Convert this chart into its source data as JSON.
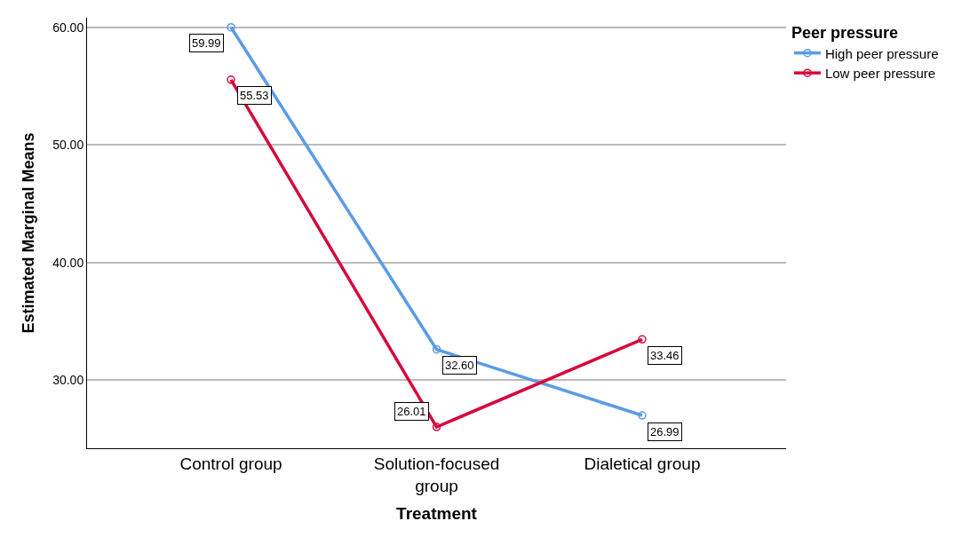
{
  "chart_data": {
    "type": "line",
    "xlabel": "Treatment",
    "ylabel": "Estimated Marginal Means",
    "legend_title": "Peer pressure",
    "categories": [
      "Control group",
      "Solution-focused group",
      "Dialetical group"
    ],
    "series": [
      {
        "name": "High peer pressure",
        "color": "#5b9be6",
        "values": [
          59.99,
          32.6,
          26.99
        ],
        "value_labels": [
          "59.99",
          "32.60",
          "26.99"
        ]
      },
      {
        "name": "Low peer pressure",
        "color": "#d6083b",
        "values": [
          55.53,
          26.01,
          33.46
        ],
        "value_labels": [
          "55.53",
          "26.01",
          "33.46"
        ]
      }
    ],
    "ylim": [
      24.2,
      60.8
    ],
    "yticks": [
      {
        "value": 30,
        "label": "30.00"
      },
      {
        "value": 40,
        "label": "40.00"
      },
      {
        "value": 50,
        "label": "50.00"
      },
      {
        "value": 60,
        "label": "60.00"
      }
    ],
    "grid": "y",
    "legend": "top right",
    "marker": "circle",
    "line_style": "solid"
  }
}
